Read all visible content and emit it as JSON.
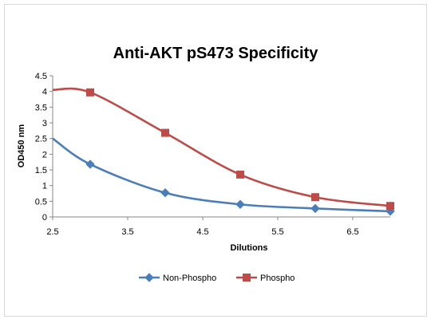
{
  "chart_data": {
    "type": "line",
    "title": "Anti-AKT pS473 Specificity",
    "xlabel": "Dilutions",
    "ylabel": "OD450 nm",
    "xlim": [
      2.5,
      7
    ],
    "ylim": [
      0,
      4.5
    ],
    "x_ticks": [
      2.5,
      3.5,
      4.5,
      5.5,
      6.5
    ],
    "x_tick_labels": [
      "2.5",
      "3.5",
      "4.5",
      "5.5",
      "6.5"
    ],
    "y_ticks": [
      0,
      0.5,
      1,
      1.5,
      2,
      2.5,
      3,
      3.5,
      4,
      4.5
    ],
    "y_tick_labels": [
      "0",
      "0.5",
      "1",
      "1.5",
      "2",
      "2.5",
      "3",
      "3.5",
      "4",
      "4.5"
    ],
    "smooth": true,
    "grid": false,
    "legend_position": "bottom",
    "series": [
      {
        "name": "Non-Phospho",
        "marker": "diamond",
        "color": "#4a7ebb",
        "curve_start": {
          "x": 2.5,
          "y": 2.5
        },
        "points": [
          {
            "x": 3,
            "y": 1.68
          },
          {
            "x": 4,
            "y": 0.77
          },
          {
            "x": 5,
            "y": 0.4
          },
          {
            "x": 6,
            "y": 0.27
          },
          {
            "x": 7,
            "y": 0.18
          }
        ]
      },
      {
        "name": "Phospho",
        "marker": "square",
        "color": "#be4b48",
        "curve_start": {
          "x": 2.5,
          "y": 4.05
        },
        "points": [
          {
            "x": 3,
            "y": 3.97
          },
          {
            "x": 4,
            "y": 2.68
          },
          {
            "x": 5,
            "y": 1.35
          },
          {
            "x": 6,
            "y": 0.63
          },
          {
            "x": 7,
            "y": 0.35
          }
        ]
      }
    ]
  }
}
